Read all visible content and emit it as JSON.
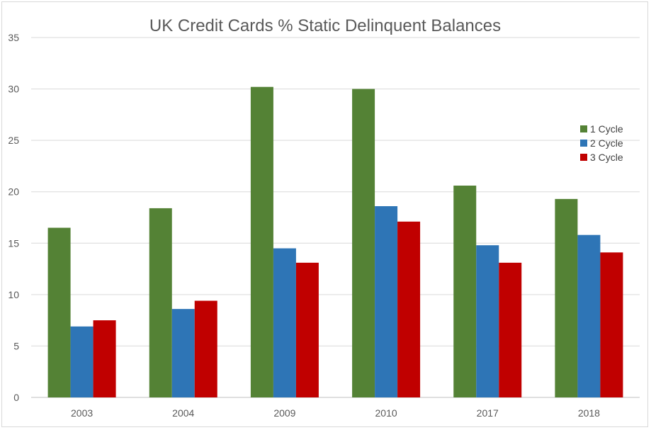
{
  "chart_data": {
    "type": "bar",
    "title": "UK Credit Cards % Static Delinquent Balances",
    "xlabel": "",
    "ylabel": "",
    "categories": [
      "2003",
      "2004",
      "2009",
      "2010",
      "2017",
      "2018"
    ],
    "series": [
      {
        "name": "1 Cycle",
        "color": "#548235",
        "values": [
          16.5,
          18.4,
          30.2,
          30.0,
          20.6,
          19.3
        ]
      },
      {
        "name": "2 Cycle",
        "color": "#2e75b6",
        "values": [
          6.9,
          8.6,
          14.5,
          18.6,
          14.8,
          15.8
        ]
      },
      {
        "name": "3 Cycle",
        "color": "#c00000",
        "values": [
          7.5,
          9.4,
          13.1,
          17.1,
          13.1,
          14.1
        ]
      }
    ],
    "ylim": [
      0,
      35
    ],
    "yticks": [
      "0",
      "5",
      "10",
      "15",
      "20",
      "25",
      "30",
      "35"
    ],
    "grid": true,
    "legend_position": "right"
  }
}
